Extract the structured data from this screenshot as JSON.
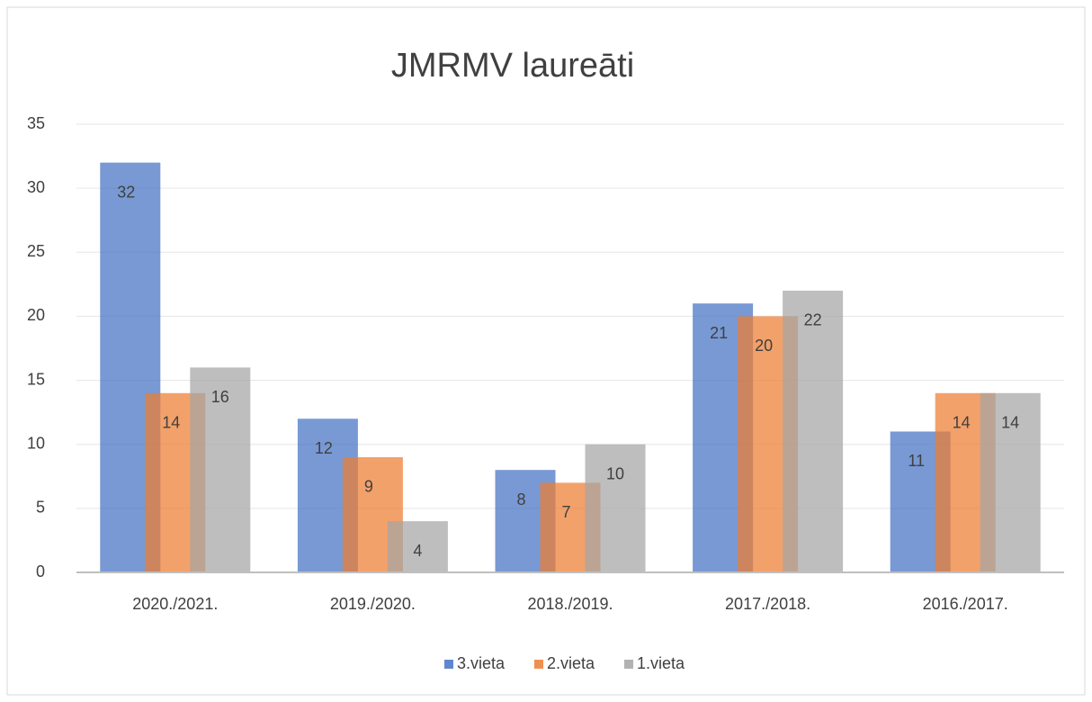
{
  "chart_data": {
    "type": "bar",
    "title": "JMRMV laureāti",
    "categories": [
      "2020./2021.",
      "2019./2020.",
      "2018./2019.",
      "2017./2018.",
      "2016./2017."
    ],
    "series": [
      {
        "name": "3.vieta",
        "color": "#4472c4",
        "values": [
          32,
          12,
          8,
          21,
          11
        ]
      },
      {
        "name": "2.vieta",
        "color": "#ed7d31",
        "values": [
          14,
          9,
          7,
          20,
          14
        ]
      },
      {
        "name": "1.vieta",
        "color": "#a5a5a5",
        "values": [
          16,
          4,
          10,
          22,
          14
        ]
      }
    ],
    "ylim": [
      0,
      35
    ],
    "yticks": [
      0,
      5,
      10,
      15,
      20,
      25,
      30,
      35
    ],
    "grid": true,
    "legend": "bottom"
  }
}
